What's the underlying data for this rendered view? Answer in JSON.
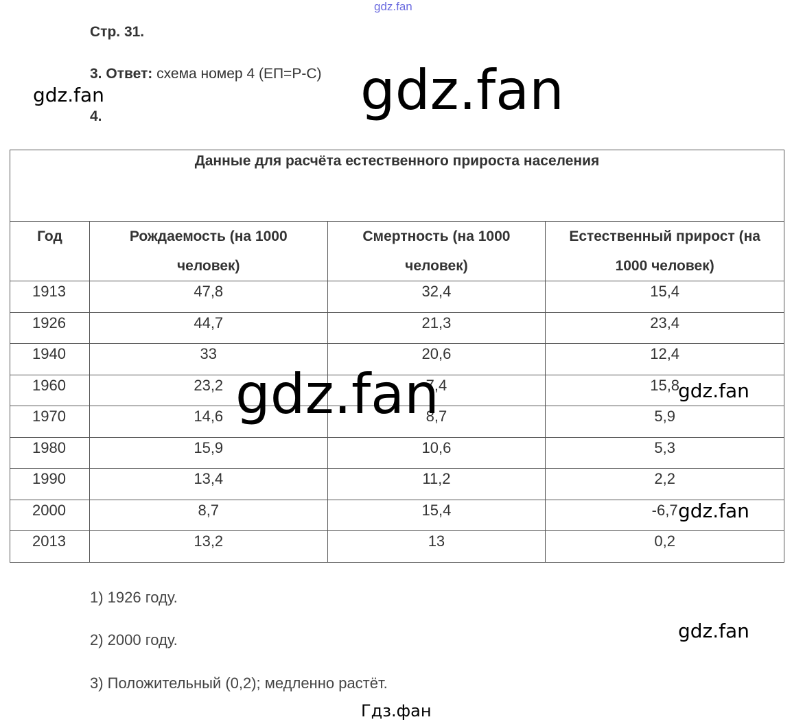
{
  "watermarks": {
    "top_small": "gdz.fan",
    "top_big": "gdz.fan",
    "left": "gdz.fan",
    "middle_big": "gdz.fan",
    "right_1": "gdz.fan",
    "right_2": "gdz.fan",
    "right_3": "gdz.fan",
    "bottom": "Гдз.фан"
  },
  "page_ref": "Стр. 31.",
  "answer3": {
    "number": "3.",
    "label": "Ответ:",
    "text": "схема номер 4 (ЕП=Р-С)"
  },
  "task4_number": "4.",
  "table": {
    "title": "Данные для расчёта естественного прироста населения",
    "headers": [
      "Год",
      "Рождаемость (на 1000 человек)",
      "Смертность (на 1000 человек)",
      "Естественный прирост (на 1000 человек)"
    ],
    "rows": [
      [
        "1913",
        "47,8",
        "32,4",
        "15,4"
      ],
      [
        "1926",
        "44,7",
        "21,3",
        "23,4"
      ],
      [
        "1940",
        "33",
        "20,6",
        "12,4"
      ],
      [
        "1960",
        "23,2",
        "7,4",
        "15,8"
      ],
      [
        "1970",
        "14,6",
        "8,7",
        "5,9"
      ],
      [
        "1980",
        "15,9",
        "10,6",
        "5,3"
      ],
      [
        "1990",
        "13,4",
        "11,2",
        "2,2"
      ],
      [
        "2000",
        "8,7",
        "15,4",
        "-6,7"
      ],
      [
        "2013",
        "13,2",
        "13",
        "0,2"
      ]
    ]
  },
  "answers": [
    "1) 1926 году.",
    "2) 2000 году.",
    "3) Положительный (0,2); медленно растёт."
  ]
}
